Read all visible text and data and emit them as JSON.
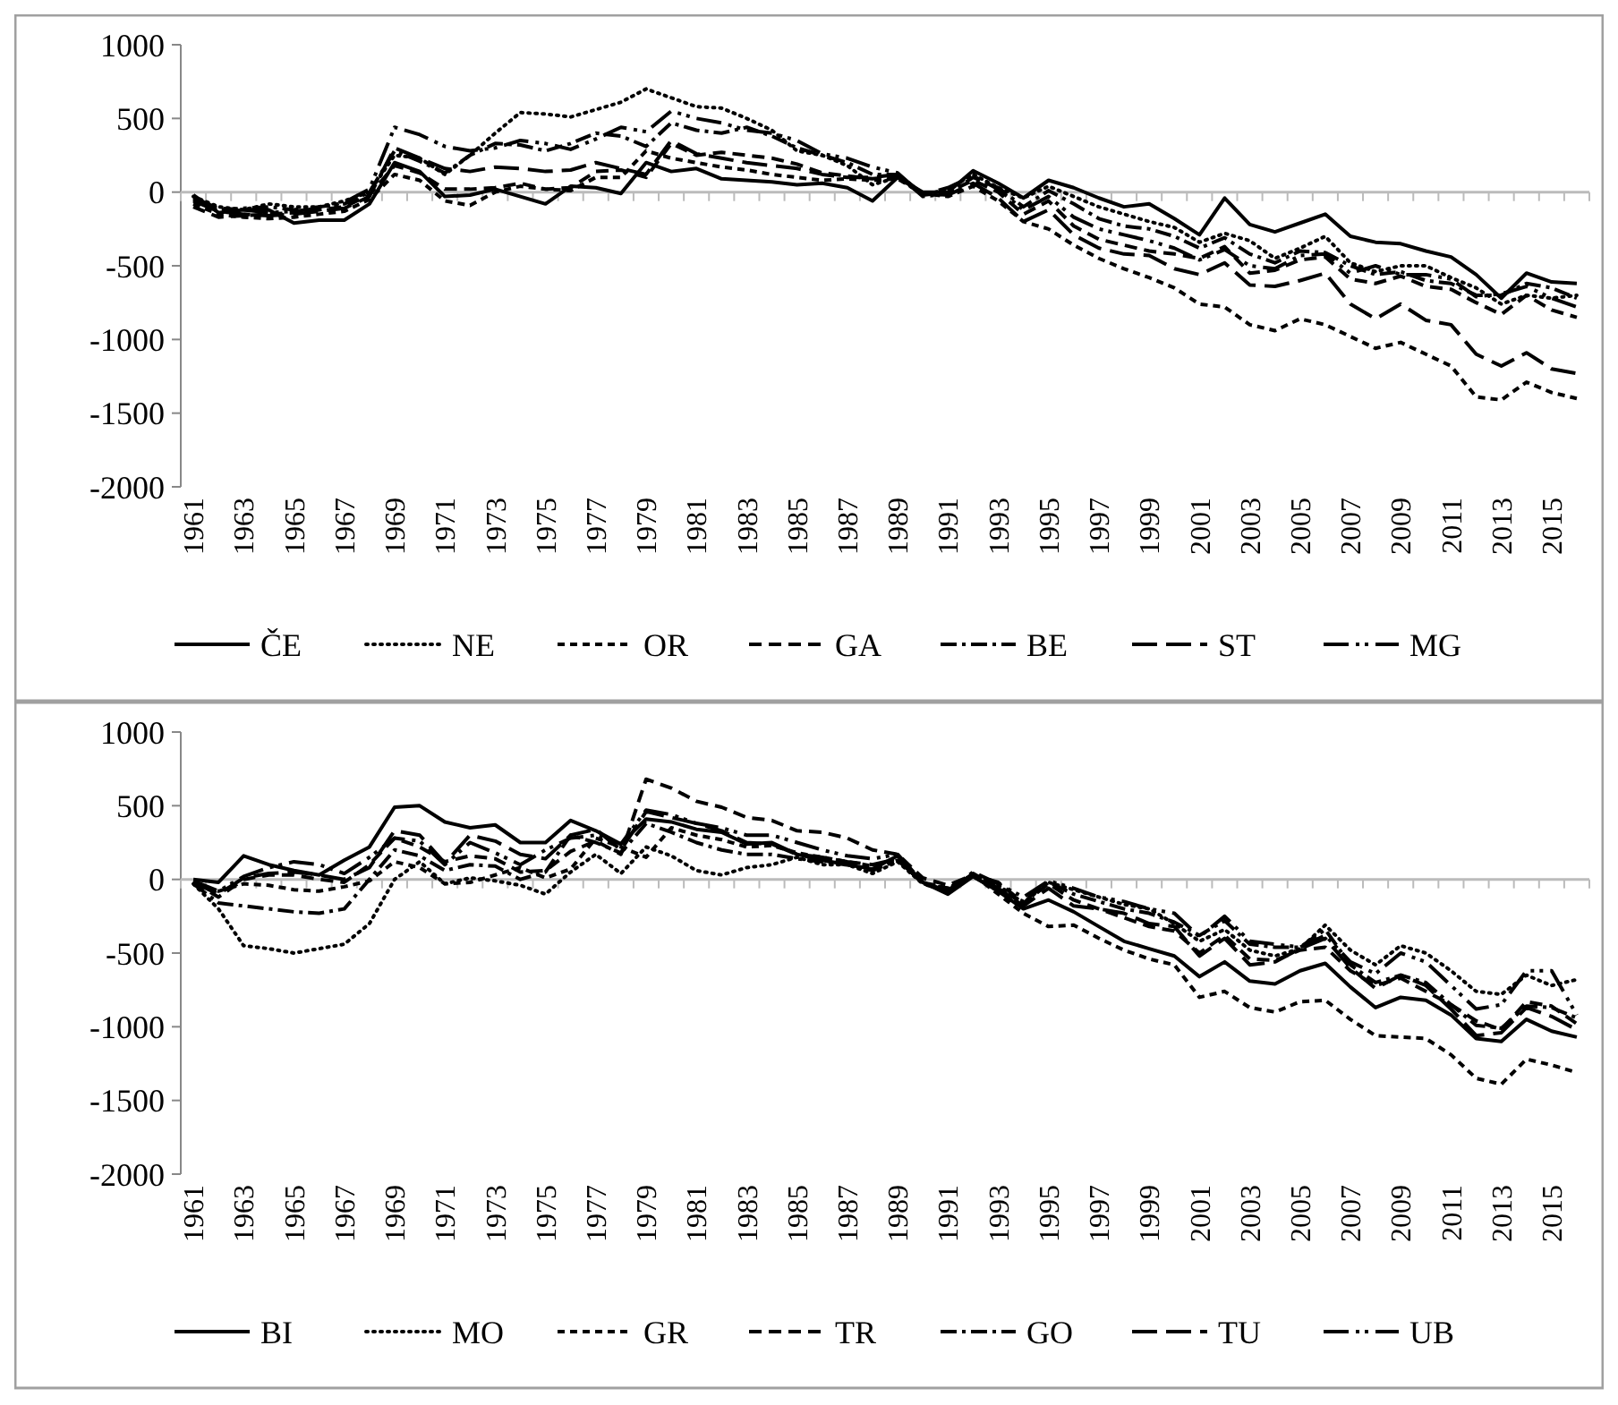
{
  "chart_data": [
    {
      "type": "line",
      "categories": [
        "1961",
        null,
        "1963",
        null,
        "1965",
        null,
        "1967",
        null,
        "1969",
        null,
        "1971",
        null,
        "1973",
        null,
        "1975",
        null,
        "1977",
        null,
        "1979",
        null,
        "1981",
        null,
        "1983",
        null,
        "1985",
        null,
        "1987",
        null,
        "1989",
        null,
        "1991",
        null,
        "1993",
        null,
        "1995",
        null,
        "1997",
        null,
        "1999",
        null,
        "2001",
        null,
        "2003",
        null,
        "2005",
        null,
        "2007",
        null,
        "2009",
        null,
        "2011",
        null,
        "2013",
        null,
        "2015",
        null
      ],
      "ylim": [
        -2000,
        1000
      ],
      "yticks": [
        -2000,
        -1500,
        -1000,
        -500,
        0,
        500,
        1000
      ],
      "legend": "bottom",
      "series": [
        {
          "name": "ČE",
          "color": "#000000",
          "line_style": "solid",
          "values": [
            -20,
            -140,
            -120,
            -120,
            -210,
            -190,
            -190,
            -80,
            200,
            140,
            -30,
            -20,
            20,
            -30,
            -80,
            40,
            30,
            -10,
            200,
            140,
            160,
            90,
            80,
            70,
            50,
            60,
            30,
            -60,
            100,
            0,
            0,
            145,
            60,
            -40,
            80,
            30,
            -40,
            -100,
            -80,
            -180,
            -290,
            -40,
            -220,
            -270,
            -210,
            -150,
            -300,
            -340,
            -350,
            -400,
            -440,
            -560,
            -720,
            -550,
            -610,
            -620
          ]
        },
        {
          "name": "NE",
          "color": "#000000",
          "line_style": "dotted",
          "values": [
            -30,
            -100,
            -120,
            -80,
            -100,
            -100,
            -60,
            0,
            250,
            230,
            120,
            250,
            400,
            540,
            530,
            510,
            560,
            610,
            700,
            640,
            580,
            570,
            500,
            420,
            280,
            250,
            180,
            50,
            100,
            -20,
            20,
            120,
            30,
            -40,
            40,
            -30,
            -100,
            -150,
            -200,
            -240,
            -340,
            -280,
            -330,
            -450,
            -380,
            -300,
            -480,
            -540,
            -500,
            -500,
            -580,
            -650,
            -760,
            -700,
            -720,
            -700
          ]
        },
        {
          "name": "OR",
          "color": "#000000",
          "line_style": "dashed",
          "values": [
            -80,
            -150,
            -170,
            -180,
            -170,
            -150,
            -130,
            -50,
            120,
            80,
            -60,
            -90,
            0,
            40,
            20,
            10,
            100,
            100,
            280,
            230,
            200,
            170,
            150,
            120,
            100,
            80,
            90,
            80,
            90,
            -10,
            -30,
            40,
            -60,
            -200,
            -250,
            -360,
            -450,
            -520,
            -580,
            -650,
            -760,
            -780,
            -900,
            -940,
            -860,
            -900,
            -980,
            -1060,
            -1020,
            -1100,
            -1180,
            -1390,
            -1410,
            -1290,
            -1360,
            -1400
          ]
        },
        {
          "name": "GA",
          "color": "#000000",
          "line_style": "dashed",
          "values": [
            -100,
            -170,
            -160,
            -150,
            -140,
            -120,
            -100,
            -20,
            180,
            130,
            20,
            20,
            30,
            60,
            20,
            30,
            140,
            150,
            100,
            330,
            250,
            270,
            250,
            230,
            190,
            130,
            110,
            90,
            110,
            -20,
            0,
            80,
            0,
            -150,
            -60,
            -230,
            -320,
            -360,
            -400,
            -420,
            -450,
            -370,
            -550,
            -530,
            -460,
            -440,
            -590,
            -620,
            -570,
            -640,
            -660,
            -750,
            -830,
            -700,
            -800,
            -850
          ]
        },
        {
          "name": "BE",
          "color": "#000000",
          "line_style": "dashed",
          "values": [
            -50,
            -120,
            -110,
            -100,
            -120,
            -100,
            -80,
            0,
            280,
            210,
            130,
            250,
            330,
            320,
            280,
            330,
            400,
            380,
            310,
            470,
            420,
            400,
            440,
            380,
            300,
            250,
            200,
            120,
            120,
            -30,
            -10,
            100,
            30,
            -100,
            10,
            -80,
            -180,
            -230,
            -250,
            -300,
            -380,
            -310,
            -420,
            -480,
            -400,
            -410,
            -500,
            -560,
            -540,
            -600,
            -620,
            -700,
            -700,
            -620,
            -650,
            -720
          ]
        },
        {
          "name": "ST",
          "color": "#000000",
          "line_style": "dashed",
          "values": [
            -60,
            -130,
            -150,
            -160,
            -150,
            -130,
            -110,
            -30,
            300,
            230,
            160,
            140,
            170,
            160,
            140,
            150,
            200,
            160,
            120,
            350,
            260,
            230,
            200,
            180,
            160,
            120,
            100,
            100,
            120,
            -10,
            -20,
            60,
            -40,
            -200,
            -120,
            -290,
            -380,
            -420,
            -430,
            -520,
            -560,
            -480,
            -630,
            -640,
            -600,
            -550,
            -760,
            -860,
            -760,
            -870,
            -900,
            -1100,
            -1180,
            -1090,
            -1200,
            -1230
          ]
        },
        {
          "name": "MG",
          "color": "#000000",
          "line_style": "dashed",
          "values": [
            -40,
            -110,
            -120,
            -140,
            -130,
            -110,
            -70,
            20,
            440,
            390,
            310,
            280,
            300,
            350,
            330,
            290,
            360,
            440,
            410,
            550,
            500,
            470,
            420,
            400,
            350,
            260,
            230,
            170,
            130,
            -20,
            30,
            110,
            20,
            -120,
            -30,
            -170,
            -250,
            -290,
            -330,
            -380,
            -460,
            -390,
            -500,
            -520,
            -430,
            -420,
            -550,
            -500,
            -560,
            -560,
            -590,
            -710,
            -690,
            -640,
            -720,
            -780
          ]
        }
      ]
    },
    {
      "type": "line",
      "categories": [
        "1961",
        null,
        "1963",
        null,
        "1965",
        null,
        "1967",
        null,
        "1969",
        null,
        "1971",
        null,
        "1973",
        null,
        "1975",
        null,
        "1977",
        null,
        "1979",
        null,
        "1981",
        null,
        "1983",
        null,
        "1985",
        null,
        "1987",
        null,
        "1989",
        null,
        "1991",
        null,
        "1993",
        null,
        "1995",
        null,
        "1997",
        null,
        "1999",
        null,
        "2001",
        null,
        "2003",
        null,
        "2005",
        null,
        "2007",
        null,
        "2009",
        null,
        "2011",
        null,
        "2013",
        null,
        "2015",
        null
      ],
      "ylim": [
        -2000,
        1000
      ],
      "yticks": [
        -2000,
        -1500,
        -1000,
        -500,
        0,
        500,
        1000
      ],
      "legend": "bottom",
      "series": [
        {
          "name": "BI",
          "color": "#000000",
          "line_style": "solid",
          "values": [
            0,
            -20,
            160,
            100,
            60,
            30,
            130,
            220,
            490,
            500,
            390,
            350,
            370,
            250,
            250,
            400,
            330,
            240,
            410,
            390,
            340,
            320,
            240,
            250,
            170,
            130,
            100,
            70,
            160,
            -20,
            -100,
            20,
            -80,
            -200,
            -140,
            -220,
            -320,
            -420,
            -470,
            -520,
            -660,
            -560,
            -690,
            -710,
            -620,
            -570,
            -730,
            -870,
            -800,
            -820,
            -920,
            -1080,
            -1100,
            -950,
            -1030,
            -1070
          ]
        },
        {
          "name": "MO",
          "color": "#000000",
          "line_style": "dotted",
          "values": [
            -30,
            -200,
            -450,
            -470,
            -500,
            -470,
            -440,
            -300,
            0,
            120,
            -30,
            10,
            -10,
            -40,
            -100,
            50,
            170,
            40,
            220,
            160,
            60,
            30,
            80,
            100,
            150,
            100,
            100,
            40,
            120,
            -30,
            -60,
            30,
            -40,
            -160,
            -20,
            -70,
            -120,
            -170,
            -200,
            -300,
            -420,
            -340,
            -480,
            -520,
            -470,
            -310,
            -480,
            -580,
            -450,
            -500,
            -620,
            -760,
            -780,
            -650,
            -720,
            -680
          ]
        },
        {
          "name": "GR",
          "color": "#000000",
          "line_style": "dashed",
          "values": [
            -30,
            -80,
            -30,
            -40,
            -70,
            -80,
            -50,
            -10,
            120,
            80,
            -30,
            -20,
            30,
            80,
            10,
            70,
            280,
            220,
            150,
            350,
            300,
            270,
            220,
            230,
            180,
            150,
            120,
            90,
            130,
            -20,
            -60,
            30,
            -100,
            -230,
            -320,
            -310,
            -400,
            -480,
            -540,
            -580,
            -800,
            -760,
            -870,
            -900,
            -830,
            -820,
            -950,
            -1060,
            -1070,
            -1080,
            -1190,
            -1350,
            -1390,
            -1220,
            -1260,
            -1310
          ]
        },
        {
          "name": "TR",
          "color": "#000000",
          "line_style": "dashed",
          "values": [
            -20,
            -120,
            0,
            30,
            30,
            0,
            -20,
            100,
            280,
            220,
            120,
            160,
            140,
            50,
            60,
            190,
            260,
            170,
            680,
            620,
            530,
            490,
            420,
            400,
            330,
            320,
            280,
            200,
            170,
            10,
            -40,
            30,
            -20,
            -160,
            -30,
            -140,
            -200,
            -260,
            -320,
            -350,
            -500,
            -380,
            -540,
            -550,
            -480,
            -460,
            -620,
            -720,
            -670,
            -760,
            -850,
            -960,
            -1020,
            -830,
            -860,
            -980
          ]
        },
        {
          "name": "GO",
          "color": "#000000",
          "line_style": "dashed",
          "values": [
            -30,
            -160,
            -180,
            -200,
            -220,
            -230,
            -200,
            0,
            200,
            160,
            60,
            100,
            90,
            0,
            50,
            300,
            250,
            180,
            380,
            320,
            250,
            200,
            170,
            170,
            140,
            120,
            100,
            60,
            130,
            -20,
            -70,
            20,
            -80,
            -150,
            -20,
            -100,
            -150,
            -200,
            -230,
            -290,
            -380,
            -280,
            -440,
            -460,
            -460,
            -340,
            -580,
            -700,
            -650,
            -700,
            -850,
            -990,
            -1010,
            -860,
            -870,
            -940
          ]
        },
        {
          "name": "TU",
          "color": "#000000",
          "line_style": "dashed",
          "values": [
            -20,
            -100,
            10,
            40,
            50,
            30,
            0,
            80,
            330,
            300,
            110,
            300,
            260,
            170,
            140,
            300,
            340,
            200,
            460,
            420,
            380,
            330,
            250,
            240,
            170,
            150,
            120,
            100,
            140,
            -30,
            -80,
            40,
            -60,
            -180,
            -60,
            -180,
            -200,
            -230,
            -300,
            -320,
            -520,
            -400,
            -580,
            -560,
            -470,
            -400,
            -600,
            -740,
            -650,
            -720,
            -880,
            -1060,
            -1040,
            -870,
            -930,
            -1020
          ]
        },
        {
          "name": "UB",
          "color": "#000000",
          "line_style": "dashed",
          "values": [
            -10,
            -80,
            20,
            80,
            120,
            100,
            40,
            150,
            280,
            260,
            100,
            250,
            180,
            100,
            200,
            280,
            300,
            240,
            470,
            440,
            380,
            350,
            300,
            300,
            250,
            200,
            160,
            140,
            170,
            -20,
            -80,
            50,
            -30,
            -120,
            -10,
            -60,
            -120,
            -150,
            -200,
            -230,
            -390,
            -250,
            -420,
            -440,
            -460,
            -380,
            -560,
            -640,
            -500,
            -560,
            -720,
            -880,
            -850,
            -620,
            -620,
            -920
          ]
        }
      ]
    }
  ]
}
